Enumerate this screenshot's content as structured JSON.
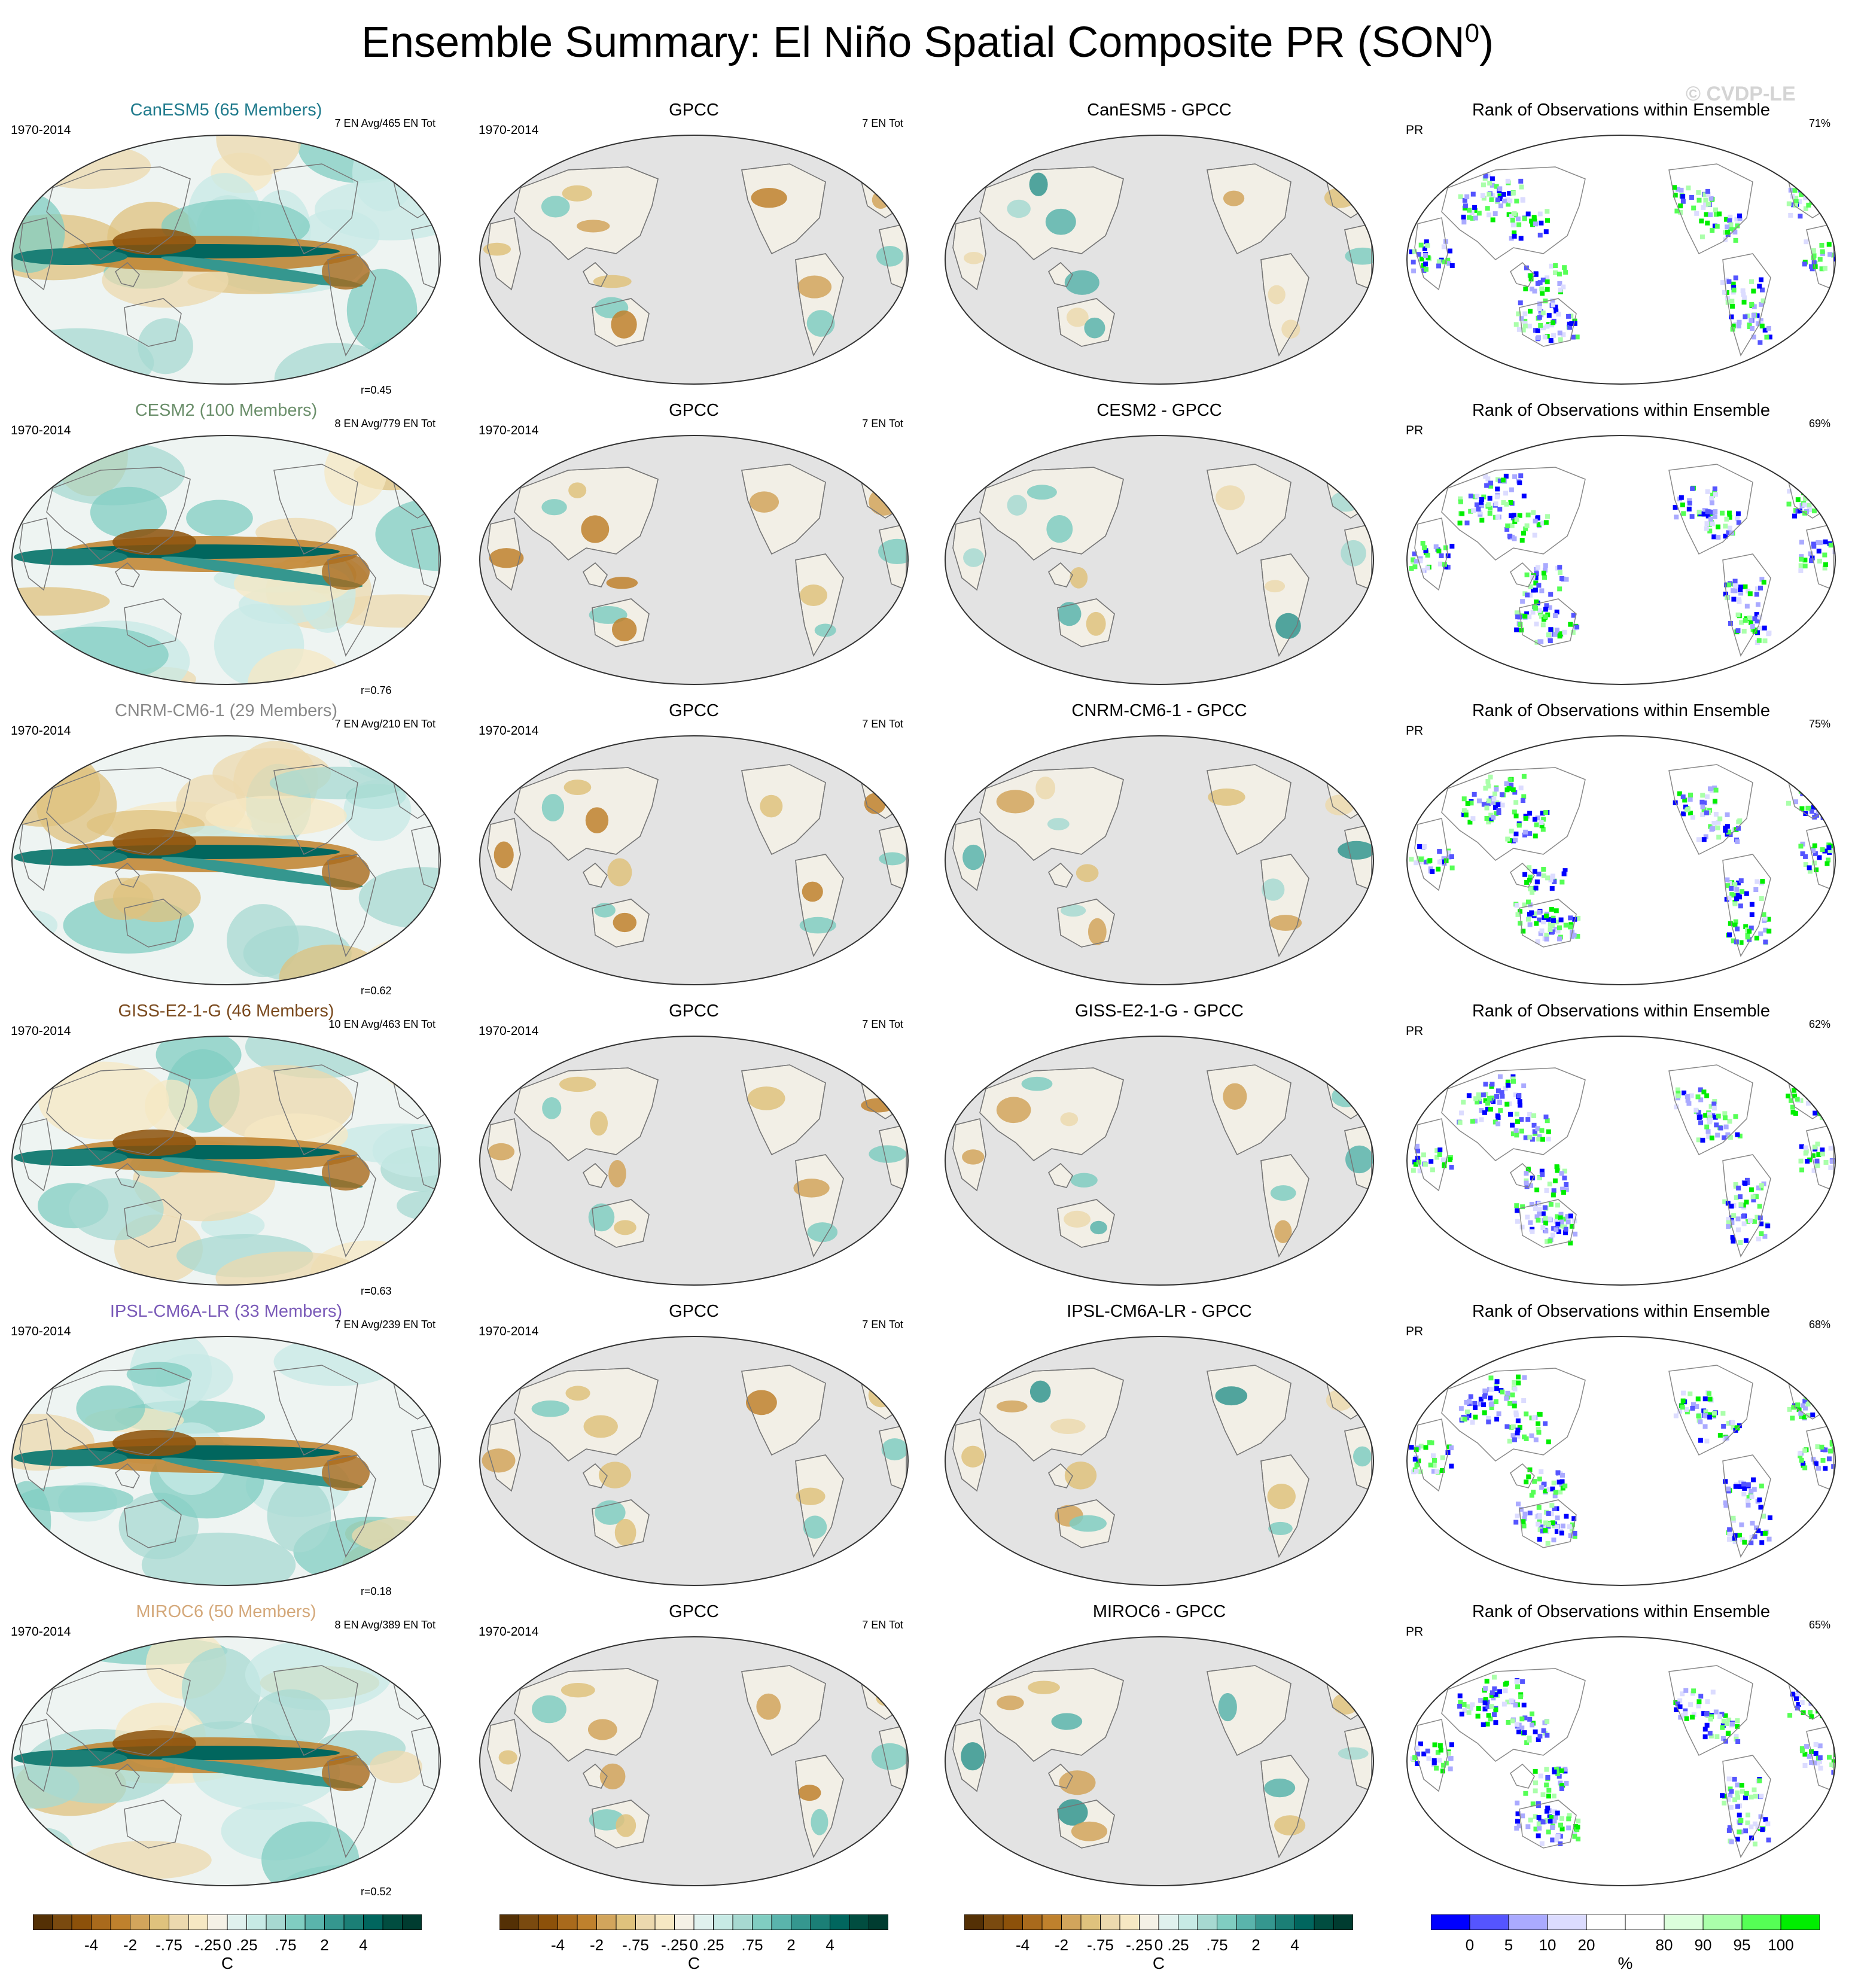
{
  "figure": {
    "title": "Ensemble Summary: El Niño Spatial Composite PR (SON",
    "title_sup": "0",
    "title_close": ")",
    "watermark": "© CVDP-LE"
  },
  "chart_data": {
    "type": "heatmap",
    "map_projection": "Robinson, Pacific-centered",
    "period": "1970-2014",
    "rows": [
      {
        "model": "CanESM5 (65 Members)",
        "model_short": "CanESM5",
        "color": "#1f7a8c",
        "en_info": "7 EN Avg/465 EN Tot",
        "corr": "r=0.45",
        "rank_pct": "71%"
      },
      {
        "model": "CESM2 (100 Members)",
        "model_short": "CESM2",
        "color": "#6b8f6b",
        "en_info": "8 EN Avg/779 EN Tot",
        "corr": "r=0.76",
        "rank_pct": "69%"
      },
      {
        "model": "CNRM-CM6-1 (29 Members)",
        "model_short": "CNRM-CM6-1",
        "color": "#8a8a8a",
        "en_info": "7 EN Avg/210 EN Tot",
        "corr": "r=0.62",
        "rank_pct": "75%"
      },
      {
        "model": "GISS-E2-1-G (46 Members)",
        "model_short": "GISS-E2-1-G",
        "color": "#7a4a1e",
        "en_info": "10 EN Avg/463 EN Tot",
        "corr": "r=0.63",
        "rank_pct": "62%"
      },
      {
        "model": "IPSL-CM6A-LR (33 Members)",
        "model_short": "IPSL-CM6A-LR",
        "color": "#7a5ab8",
        "en_info": "7 EN Avg/239 EN Tot",
        "corr": "r=0.18",
        "rank_pct": "68%"
      },
      {
        "model": "MIROC6 (50 Members)",
        "model_short": "MIROC6",
        "color": "#d4a87a",
        "en_info": "8 EN Avg/389 EN Tot",
        "corr": "r=0.52",
        "rank_pct": "65%"
      }
    ],
    "obs_name": "GPCC",
    "obs_info": "7 EN Tot",
    "diff_sep": " - ",
    "rank_title": "Rank of Observations within Ensemble",
    "rank_var": "PR",
    "colorbar_pr": {
      "unit": "C",
      "tick_labels": [
        "-4",
        "-2",
        "-.75",
        "-.25",
        "0",
        ".25",
        ".75",
        "2",
        "4"
      ],
      "colors": [
        "#543005",
        "#7a4a0f",
        "#8c510a",
        "#a96a1c",
        "#bf812d",
        "#d2a55c",
        "#dfc27d",
        "#ecd9ae",
        "#f6e8c3",
        "#f5f1e6",
        "#e0f1ee",
        "#c7eae5",
        "#a7d9d1",
        "#80cdc1",
        "#5ab4ac",
        "#35978f",
        "#1b7f76",
        "#01665e",
        "#014d40",
        "#003c30"
      ]
    },
    "colorbar_rank": {
      "unit": "%",
      "tick_labels": [
        "0",
        "5",
        "10",
        "20",
        "80",
        "90",
        "95",
        "100"
      ],
      "colors": [
        "#0000ff",
        "#5555ff",
        "#aaaaff",
        "#dcdcff",
        "#ffffff",
        "#ffffff",
        "#dcffdc",
        "#aaffaa",
        "#55ff55",
        "#00ee00"
      ]
    }
  }
}
